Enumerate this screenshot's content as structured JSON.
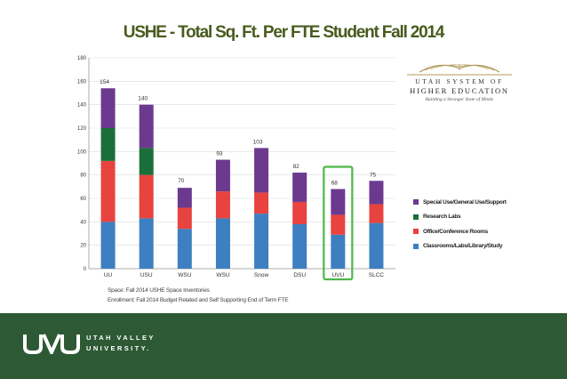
{
  "slide": {
    "title": "USHE - Total Sq. Ft. Per FTE Student Fall 2014",
    "notes": [
      "Space: Fall 2014 USHE Space Inventories",
      "Enrollment: Fall 2014 Budget Related and Self Supporting End of Term FTE"
    ]
  },
  "ushe_logo": {
    "line1": "UTAH SYSTEM OF",
    "line2": "HIGHER EDUCATION",
    "tagline": "Building a Stronger State of Minds"
  },
  "footer": {
    "line1": "UTAH VALLEY",
    "line2": "UNIVERSITY."
  },
  "colors": {
    "special": "#6b3a8f",
    "research": "#1a6e3a",
    "office": "#e8433f",
    "classrooms": "#3d7fc1",
    "highlight": "#4cb848",
    "footer": "#2d5a34"
  },
  "chart_data": {
    "type": "bar",
    "stacked": true,
    "categories": [
      "UU",
      "USU",
      "WSU",
      "WSU",
      "Snow",
      "DSU",
      "UVU",
      "SLCC"
    ],
    "series": [
      {
        "name": "Classrooms/Labs/Library/Study",
        "color": "#3d7fc1",
        "values": [
          40,
          43,
          34,
          43,
          47,
          38,
          29,
          39
        ]
      },
      {
        "name": "Office/Conference Rooms",
        "color": "#e8433f",
        "values": [
          52,
          37,
          18,
          23,
          18,
          19,
          17,
          16
        ]
      },
      {
        "name": "Research Labs",
        "color": "#1a6e3a",
        "values": [
          28,
          23,
          0,
          0,
          0,
          0,
          0,
          0
        ]
      },
      {
        "name": "Special Use/General Use/Support",
        "color": "#6b3a8f",
        "values": [
          34,
          37,
          17,
          27,
          38,
          25,
          22,
          20
        ]
      }
    ],
    "totals": [
      "154",
      "140",
      "70",
      "93",
      "103",
      "82",
      "68",
      "75"
    ],
    "yticks": [
      "0",
      "20",
      "40",
      "60",
      "80",
      "100",
      "120",
      "140",
      "160",
      "180"
    ],
    "ylim": [
      0,
      180
    ],
    "highlight_category_index": 6,
    "legend_order": [
      "Special Use/General Use/Support",
      "Research Labs",
      "Office/Conference Rooms",
      "Classrooms/Labs/Library/Study"
    ],
    "legend_position": "right",
    "grid": true
  }
}
